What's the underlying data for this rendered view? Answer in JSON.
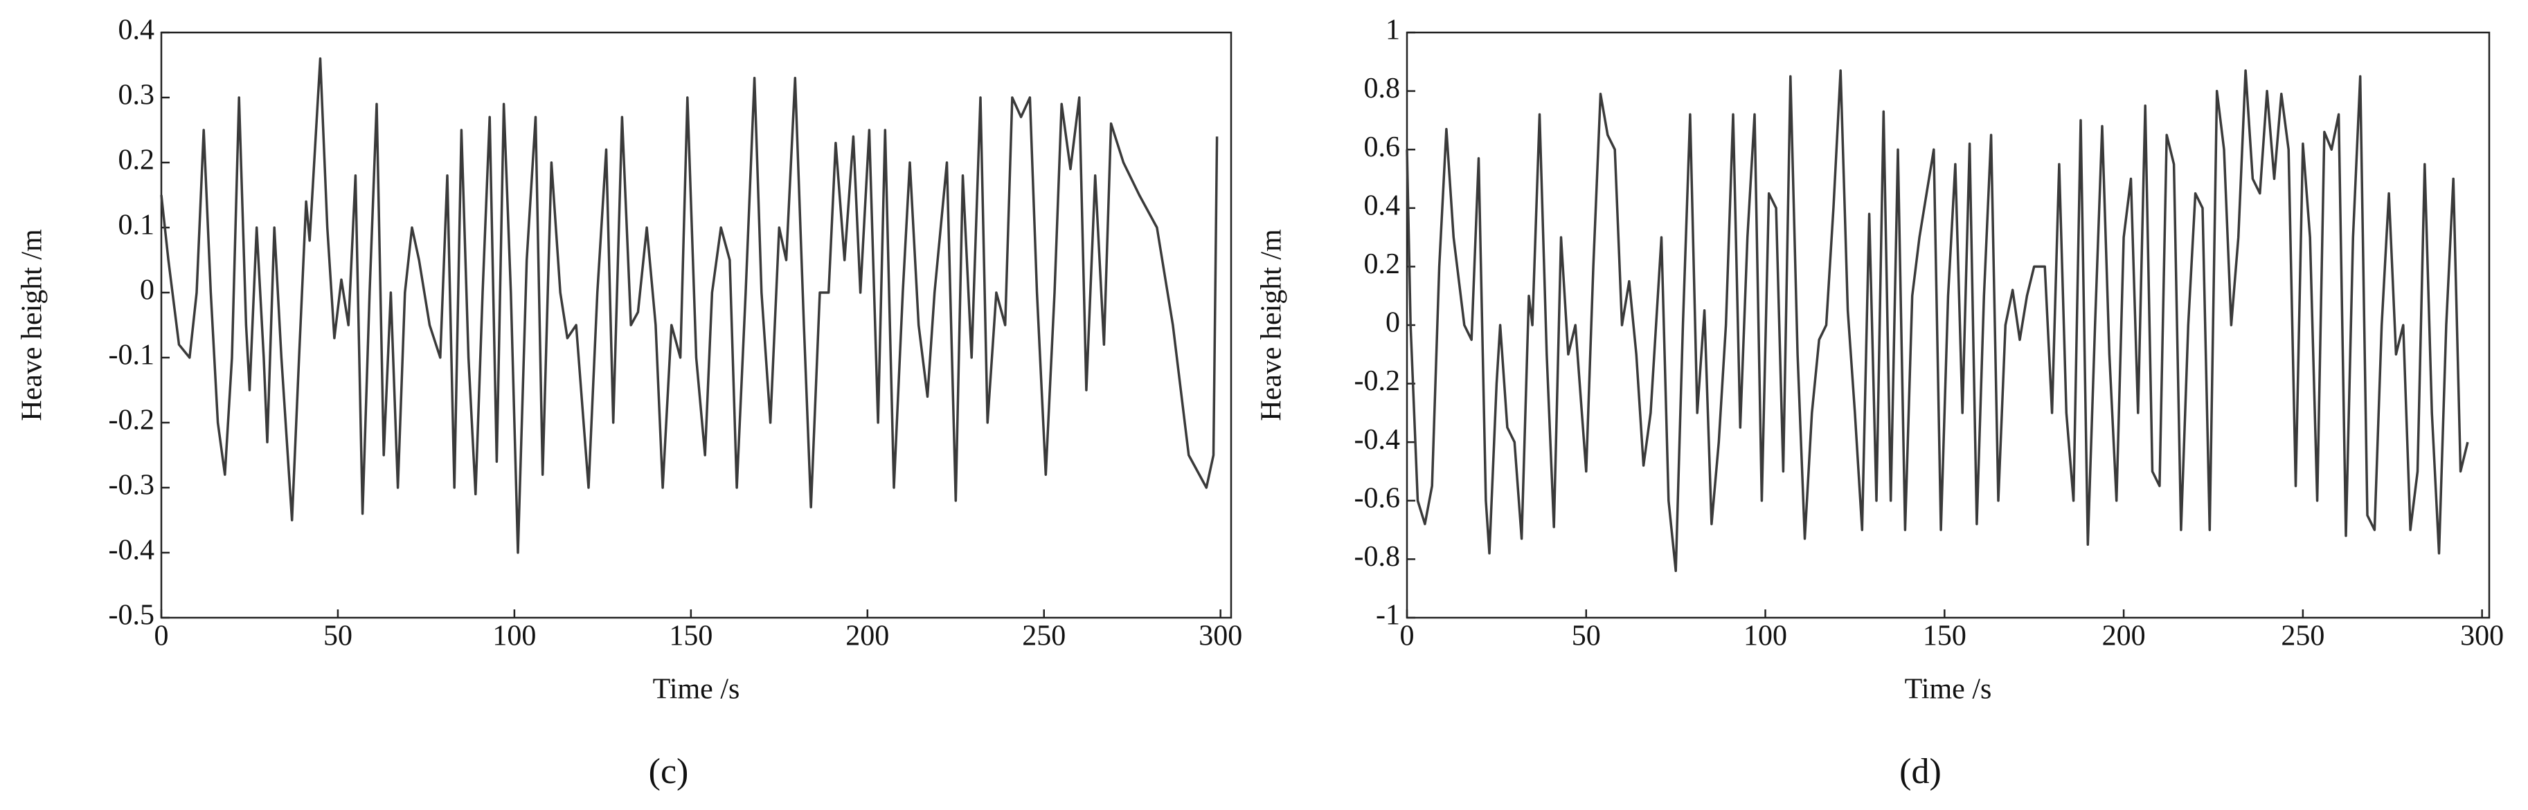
{
  "chart_data": [
    {
      "type": "line",
      "label": "(c)",
      "xlabel": "Time /s",
      "ylabel": "Heave height /m",
      "xlim": [
        0,
        303
      ],
      "xticks": [
        0,
        50,
        100,
        150,
        200,
        250,
        300
      ],
      "ylim": [
        -0.5,
        0.4
      ],
      "yticks": [
        -0.5,
        -0.4,
        -0.3,
        -0.2,
        -0.1,
        0,
        0.1,
        0.2,
        0.3,
        0.4
      ],
      "series": [
        {
          "color": "#3a3a3a",
          "x": [
            0,
            2,
            5,
            8,
            10,
            12,
            14,
            16,
            18,
            20,
            22,
            24,
            25,
            27,
            29,
            30,
            32,
            34,
            37,
            39,
            41,
            42,
            45,
            47,
            49,
            51,
            53,
            55,
            57,
            59,
            61,
            63,
            65,
            67,
            69,
            71,
            73,
            76,
            79,
            81,
            83,
            85,
            87,
            89,
            91,
            93,
            95,
            97,
            99,
            101,
            103.5,
            106,
            108,
            110.5,
            113,
            115,
            117.5,
            121,
            123.5,
            126,
            128,
            130.5,
            133,
            135,
            137.5,
            140,
            142,
            144.5,
            147,
            149,
            151.5,
            154,
            156,
            158.5,
            161,
            163,
            165.5,
            168,
            170,
            172.5,
            175,
            177,
            179.5,
            182,
            184,
            186.5,
            189,
            191,
            193.5,
            196,
            198,
            200.5,
            203,
            205,
            207.5,
            210,
            212,
            214.5,
            217,
            219,
            222.5,
            225,
            227,
            229.5,
            232,
            234,
            236.5,
            239,
            241,
            243.5,
            246,
            248,
            250.5,
            253,
            255,
            257.5,
            260,
            262,
            264.5,
            267,
            269,
            272.5,
            277,
            282,
            286.5,
            291,
            296,
            298,
            299
          ],
          "values": [
            0.15,
            0.05,
            -0.08,
            -0.1,
            0,
            0.25,
            0,
            -0.2,
            -0.28,
            -0.1,
            0.3,
            -0.05,
            -0.15,
            0.1,
            -0.1,
            -0.23,
            0.1,
            -0.1,
            -0.35,
            -0.1,
            0.14,
            0.08,
            0.36,
            0.1,
            -0.07,
            0.02,
            -0.05,
            0.18,
            -0.34,
            0,
            0.29,
            -0.25,
            0,
            -0.3,
            0,
            0.1,
            0.05,
            -0.05,
            -0.1,
            0.18,
            -0.3,
            0.25,
            -0.1,
            -0.31,
            0,
            0.27,
            -0.26,
            0.29,
            0,
            -0.4,
            0.05,
            0.27,
            -0.28,
            0.2,
            0,
            -0.07,
            -0.05,
            -0.3,
            0,
            0.22,
            -0.2,
            0.27,
            -0.05,
            -0.03,
            0.1,
            -0.05,
            -0.3,
            -0.05,
            -0.1,
            0.3,
            -0.1,
            -0.25,
            0,
            0.1,
            0.05,
            -0.3,
            0,
            0.33,
            0,
            -0.2,
            0.1,
            0.05,
            0.33,
            -0.05,
            -0.33,
            0,
            0,
            0.23,
            0.05,
            0.24,
            0,
            0.25,
            -0.2,
            0.25,
            -0.3,
            0,
            0.2,
            -0.05,
            -0.16,
            0,
            0.2,
            -0.32,
            0.18,
            -0.1,
            0.3,
            -0.2,
            0,
            -0.05,
            0.3,
            0.27,
            0.3,
            0,
            -0.28,
            0,
            0.29,
            0.19,
            0.3,
            -0.15,
            0.18,
            -0.08,
            0.26,
            0.2,
            0.15,
            0.1,
            -0.05,
            -0.25,
            -0.3,
            -0.25,
            0.24
          ]
        }
      ]
    },
    {
      "type": "line",
      "label": "(d)",
      "xlabel": "Time /s",
      "ylabel": "Heave height /m",
      "xlim": [
        0,
        302
      ],
      "xticks": [
        0,
        50,
        100,
        150,
        200,
        250,
        300
      ],
      "ylim": [
        -1,
        1
      ],
      "yticks": [
        -1,
        -0.8,
        -0.6,
        -0.4,
        -0.2,
        0,
        0.2,
        0.4,
        0.6,
        0.8,
        1
      ],
      "series": [
        {
          "color": "#3a3a3a",
          "x": [
            0,
            1,
            3,
            5,
            7,
            9,
            11,
            13,
            16,
            18,
            20,
            22,
            23,
            25,
            26,
            28,
            30,
            32,
            34,
            35,
            37,
            39,
            41,
            43,
            45,
            47,
            50,
            52,
            54,
            56,
            58,
            60,
            62,
            64,
            66,
            68,
            71,
            73,
            75,
            77,
            79,
            81,
            83,
            85,
            87,
            89,
            91,
            93,
            95,
            97,
            99,
            101,
            103,
            105,
            107,
            109,
            111,
            113,
            115,
            117,
            119,
            121,
            123,
            125,
            127,
            129,
            131,
            133,
            135,
            137,
            139,
            141,
            143,
            145,
            147,
            149,
            151,
            153,
            155,
            157,
            159,
            161,
            163,
            165,
            167,
            169,
            171,
            173,
            175,
            178,
            180,
            182,
            184,
            186,
            188,
            190,
            192,
            194,
            196,
            198,
            200,
            202,
            204,
            206,
            208,
            210,
            212,
            214,
            216,
            218,
            220,
            222,
            224,
            226,
            228,
            230,
            232,
            234,
            236,
            238,
            240,
            242,
            244,
            246,
            248,
            250,
            252,
            254,
            256,
            258,
            260,
            262,
            264,
            266,
            268,
            270,
            272,
            274,
            276,
            278,
            280,
            282,
            284,
            286,
            288,
            290,
            292,
            294,
            296
          ],
          "values": [
            0.6,
            0,
            -0.6,
            -0.68,
            -0.55,
            0.2,
            0.67,
            0.3,
            0,
            -0.05,
            0.57,
            -0.6,
            -0.78,
            -0.2,
            0,
            -0.35,
            -0.4,
            -0.73,
            0.1,
            0,
            0.72,
            -0.1,
            -0.69,
            0.3,
            -0.1,
            0,
            -0.5,
            0.2,
            0.79,
            0.65,
            0.6,
            0,
            0.15,
            -0.1,
            -0.48,
            -0.3,
            0.3,
            -0.6,
            -0.84,
            0,
            0.72,
            -0.3,
            0.05,
            -0.68,
            -0.4,
            0,
            0.72,
            -0.35,
            0.3,
            0.72,
            -0.6,
            0.45,
            0.4,
            -0.5,
            0.85,
            -0.1,
            -0.73,
            -0.3,
            -0.05,
            0,
            0.4,
            0.87,
            0.05,
            -0.3,
            -0.7,
            0.38,
            -0.6,
            0.73,
            -0.6,
            0.6,
            -0.7,
            0.1,
            0.3,
            0.45,
            0.6,
            -0.7,
            0.1,
            0.55,
            -0.3,
            0.62,
            -0.68,
            0.1,
            0.65,
            -0.6,
            0,
            0.12,
            -0.05,
            0.1,
            0.2,
            0.2,
            -0.3,
            0.55,
            -0.3,
            -0.6,
            0.7,
            -0.75,
            0,
            0.68,
            -0.1,
            -0.6,
            0.3,
            0.5,
            -0.3,
            0.75,
            -0.5,
            -0.55,
            0.65,
            0.55,
            -0.7,
            0,
            0.45,
            0.4,
            -0.7,
            0.8,
            0.6,
            0,
            0.3,
            0.87,
            0.5,
            0.45,
            0.8,
            0.5,
            0.79,
            0.6,
            -0.55,
            0.62,
            0.3,
            -0.6,
            0.66,
            0.6,
            0.72,
            -0.72,
            0.3,
            0.85,
            -0.65,
            -0.7,
            0,
            0.45,
            -0.1,
            0,
            -0.7,
            -0.5,
            0.55,
            -0.3,
            -0.78,
            0,
            0.5,
            -0.5,
            -0.4
          ]
        }
      ]
    }
  ]
}
